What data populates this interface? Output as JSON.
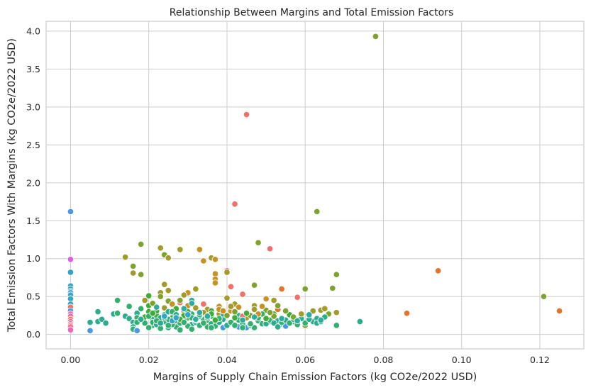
{
  "chart_data": {
    "type": "scatter",
    "title": "Relationship Between Margins and Total Emission Factors",
    "xlabel": "Margins of Supply Chain Emission Factors (kg CO2e/2022 USD)",
    "ylabel": "Total Emission Factors With Margins (kg CO2e/2022 USD)",
    "xlim": [
      -0.00625,
      0.13125
    ],
    "ylim": [
      -0.19,
      4.13
    ],
    "xticks": [
      "0.00",
      "0.02",
      "0.04",
      "0.06",
      "0.08",
      "0.10",
      "0.12"
    ],
    "yticks": [
      "0.0",
      "0.5",
      "1.0",
      "1.5",
      "2.0",
      "2.5",
      "3.0",
      "3.5",
      "4.0"
    ],
    "grid": true,
    "legend": "none",
    "palette": [
      "#f0706a",
      "#e0762e",
      "#c69223",
      "#a29b2c",
      "#7ea22e",
      "#3fac38",
      "#33b070",
      "#2cac8e",
      "#2fac9f",
      "#34a5c9",
      "#4b95e8",
      "#a07ff0",
      "#e05ce6",
      "#f264b6",
      "#f56d90"
    ],
    "points": [
      [
        0.0,
        1.62,
        10
      ],
      [
        0.0,
        0.99,
        12
      ],
      [
        0.0,
        0.82,
        9
      ],
      [
        0.0,
        0.64,
        9
      ],
      [
        0.0,
        0.6,
        9
      ],
      [
        0.0,
        0.57,
        9
      ],
      [
        0.0,
        0.55,
        10
      ],
      [
        0.0,
        0.52,
        9
      ],
      [
        0.0,
        0.47,
        9
      ],
      [
        0.0,
        0.4,
        9
      ],
      [
        0.0,
        0.36,
        0
      ],
      [
        0.0,
        0.31,
        10
      ],
      [
        0.0,
        0.27,
        13
      ],
      [
        0.0,
        0.24,
        14
      ],
      [
        0.0,
        0.2,
        0
      ],
      [
        0.0,
        0.17,
        14
      ],
      [
        0.0,
        0.14,
        13
      ],
      [
        0.0,
        0.12,
        0
      ],
      [
        0.0,
        0.1,
        14
      ],
      [
        0.0,
        0.06,
        13
      ],
      [
        0.005,
        0.05,
        10
      ],
      [
        0.005,
        0.16,
        7
      ],
      [
        0.007,
        0.3,
        7
      ],
      [
        0.007,
        0.17,
        7
      ],
      [
        0.008,
        0.2,
        7
      ],
      [
        0.009,
        0.15,
        7
      ],
      [
        0.011,
        0.27,
        7
      ],
      [
        0.012,
        0.28,
        6
      ],
      [
        0.012,
        0.45,
        6
      ],
      [
        0.014,
        0.24,
        7
      ],
      [
        0.015,
        0.21,
        7
      ],
      [
        0.015,
        0.37,
        6
      ],
      [
        0.016,
        0.16,
        7
      ],
      [
        0.016,
        0.1,
        7
      ],
      [
        0.016,
        0.07,
        6
      ],
      [
        0.017,
        0.05,
        10
      ],
      [
        0.017,
        0.28,
        7
      ],
      [
        0.017,
        0.22,
        6
      ],
      [
        0.014,
        1.02,
        3
      ],
      [
        0.016,
        0.9,
        4
      ],
      [
        0.016,
        0.81,
        3
      ],
      [
        0.018,
        1.19,
        4
      ],
      [
        0.018,
        0.79,
        4
      ],
      [
        0.019,
        0.45,
        3
      ],
      [
        0.02,
        0.51,
        5
      ],
      [
        0.02,
        0.3,
        5
      ],
      [
        0.021,
        0.2,
        7
      ],
      [
        0.021,
        0.12,
        6
      ],
      [
        0.022,
        0.25,
        5
      ],
      [
        0.023,
        1.14,
        3
      ],
      [
        0.024,
        1.05,
        4
      ],
      [
        0.025,
        1.01,
        3
      ],
      [
        0.025,
        0.58,
        3
      ],
      [
        0.024,
        0.66,
        3
      ],
      [
        0.023,
        0.55,
        3
      ],
      [
        0.023,
        0.5,
        4
      ],
      [
        0.024,
        0.35,
        3
      ],
      [
        0.025,
        0.44,
        4
      ],
      [
        0.026,
        0.39,
        3
      ],
      [
        0.026,
        0.28,
        7
      ],
      [
        0.026,
        0.22,
        5
      ],
      [
        0.027,
        0.18,
        7
      ],
      [
        0.027,
        0.1,
        6
      ],
      [
        0.028,
        0.06,
        6
      ],
      [
        0.028,
        1.12,
        3
      ],
      [
        0.028,
        0.42,
        0
      ],
      [
        0.029,
        0.31,
        3
      ],
      [
        0.03,
        0.38,
        2
      ],
      [
        0.03,
        0.55,
        2
      ],
      [
        0.03,
        0.22,
        5
      ],
      [
        0.031,
        0.13,
        7
      ],
      [
        0.031,
        0.45,
        8
      ],
      [
        0.031,
        0.41,
        8
      ],
      [
        0.032,
        0.6,
        3
      ],
      [
        0.033,
        1.12,
        2
      ],
      [
        0.034,
        0.97,
        2
      ],
      [
        0.035,
        0.33,
        3
      ],
      [
        0.035,
        0.19,
        5
      ],
      [
        0.036,
        1.01,
        3
      ],
      [
        0.037,
        0.99,
        2
      ],
      [
        0.037,
        0.8,
        2
      ],
      [
        0.037,
        0.73,
        2
      ],
      [
        0.037,
        0.68,
        2
      ],
      [
        0.038,
        0.37,
        2
      ],
      [
        0.038,
        0.27,
        3
      ],
      [
        0.039,
        0.2,
        7
      ],
      [
        0.039,
        0.09,
        10
      ],
      [
        0.04,
        0.84,
        0
      ],
      [
        0.04,
        0.82,
        3
      ],
      [
        0.04,
        0.48,
        3
      ],
      [
        0.041,
        0.63,
        0
      ],
      [
        0.041,
        0.31,
        2
      ],
      [
        0.042,
        1.72,
        0
      ],
      [
        0.042,
        0.4,
        3
      ],
      [
        0.043,
        0.25,
        7
      ],
      [
        0.043,
        0.1,
        10
      ],
      [
        0.044,
        0.53,
        0
      ],
      [
        0.044,
        0.14,
        6
      ],
      [
        0.045,
        2.9,
        0
      ],
      [
        0.045,
        0.22,
        3
      ],
      [
        0.045,
        0.09,
        10
      ],
      [
        0.046,
        0.25,
        4
      ],
      [
        0.047,
        0.65,
        4
      ],
      [
        0.047,
        0.38,
        3
      ],
      [
        0.048,
        1.21,
        4
      ],
      [
        0.048,
        0.18,
        6
      ],
      [
        0.049,
        0.14,
        6
      ],
      [
        0.05,
        0.47,
        2
      ],
      [
        0.05,
        0.32,
        4
      ],
      [
        0.051,
        1.13,
        0
      ],
      [
        0.051,
        0.17,
        7
      ],
      [
        0.052,
        0.45,
        3
      ],
      [
        0.052,
        0.27,
        5
      ],
      [
        0.053,
        0.33,
        1
      ],
      [
        0.053,
        0.18,
        7
      ],
      [
        0.054,
        0.6,
        1
      ],
      [
        0.054,
        0.14,
        6
      ],
      [
        0.055,
        0.11,
        10
      ],
      [
        0.056,
        0.26,
        5
      ],
      [
        0.057,
        0.17,
        7
      ],
      [
        0.058,
        0.13,
        6
      ],
      [
        0.058,
        0.49,
        0
      ],
      [
        0.059,
        0.21,
        7
      ],
      [
        0.06,
        0.6,
        4
      ],
      [
        0.06,
        0.12,
        4
      ],
      [
        0.061,
        0.27,
        3
      ],
      [
        0.062,
        0.31,
        3
      ],
      [
        0.062,
        0.17,
        7
      ],
      [
        0.063,
        1.62,
        4
      ],
      [
        0.063,
        0.21,
        7
      ],
      [
        0.064,
        0.32,
        3
      ],
      [
        0.065,
        0.34,
        3
      ],
      [
        0.066,
        0.27,
        4
      ],
      [
        0.067,
        0.61,
        4
      ],
      [
        0.068,
        0.79,
        4
      ],
      [
        0.068,
        0.29,
        3
      ],
      [
        0.068,
        0.12,
        6
      ],
      [
        0.074,
        0.17,
        7
      ],
      [
        0.078,
        3.93,
        4
      ],
      [
        0.086,
        0.28,
        1
      ],
      [
        0.094,
        0.84,
        1
      ],
      [
        0.121,
        0.5,
        4
      ],
      [
        0.125,
        0.31,
        1
      ],
      [
        0.019,
        0.15,
        6
      ],
      [
        0.02,
        0.09,
        6
      ],
      [
        0.021,
        0.16,
        6
      ],
      [
        0.022,
        0.13,
        7
      ],
      [
        0.023,
        0.08,
        6
      ],
      [
        0.024,
        0.17,
        6
      ],
      [
        0.024,
        0.26,
        6
      ],
      [
        0.025,
        0.09,
        7
      ],
      [
        0.025,
        0.2,
        6
      ],
      [
        0.026,
        0.13,
        6
      ],
      [
        0.027,
        0.24,
        6
      ],
      [
        0.028,
        0.15,
        6
      ],
      [
        0.029,
        0.19,
        7
      ],
      [
        0.03,
        0.11,
        6
      ],
      [
        0.031,
        0.07,
        6
      ],
      [
        0.032,
        0.16,
        7
      ],
      [
        0.033,
        0.12,
        6
      ],
      [
        0.034,
        0.2,
        6
      ],
      [
        0.035,
        0.1,
        6
      ],
      [
        0.036,
        0.14,
        7
      ],
      [
        0.036,
        0.24,
        6
      ],
      [
        0.037,
        0.11,
        6
      ],
      [
        0.038,
        0.16,
        7
      ],
      [
        0.039,
        0.27,
        7
      ],
      [
        0.04,
        0.12,
        7
      ],
      [
        0.041,
        0.16,
        6
      ],
      [
        0.042,
        0.12,
        6
      ],
      [
        0.043,
        0.19,
        6
      ],
      [
        0.044,
        0.09,
        6
      ],
      [
        0.046,
        0.12,
        6
      ],
      [
        0.047,
        0.09,
        6
      ],
      [
        0.048,
        0.22,
        6
      ],
      [
        0.049,
        0.27,
        6
      ],
      [
        0.05,
        0.14,
        7
      ],
      [
        0.051,
        0.19,
        6
      ],
      [
        0.052,
        0.15,
        7
      ],
      [
        0.053,
        0.1,
        7
      ],
      [
        0.054,
        0.16,
        6
      ],
      [
        0.055,
        0.19,
        7
      ],
      [
        0.056,
        0.15,
        6
      ],
      [
        0.057,
        0.2,
        6
      ],
      [
        0.06,
        0.15,
        6
      ],
      [
        0.061,
        0.2,
        7
      ],
      [
        0.063,
        0.15,
        7
      ],
      [
        0.064,
        0.17,
        6
      ],
      [
        0.065,
        0.23,
        7
      ],
      [
        0.018,
        0.34,
        6
      ],
      [
        0.019,
        0.23,
        5
      ],
      [
        0.02,
        0.38,
        5
      ],
      [
        0.022,
        0.31,
        5
      ],
      [
        0.023,
        0.22,
        7
      ],
      [
        0.025,
        0.3,
        7
      ],
      [
        0.027,
        0.34,
        5
      ],
      [
        0.029,
        0.25,
        5
      ],
      [
        0.031,
        0.27,
        6
      ],
      [
        0.033,
        0.24,
        7
      ],
      [
        0.034,
        0.29,
        3
      ],
      [
        0.036,
        0.31,
        5
      ],
      [
        0.038,
        0.21,
        6
      ],
      [
        0.04,
        0.25,
        4
      ],
      [
        0.042,
        0.22,
        5
      ],
      [
        0.044,
        0.24,
        0
      ],
      [
        0.046,
        0.14,
        6
      ],
      [
        0.048,
        0.27,
        2
      ],
      [
        0.05,
        0.21,
        5
      ],
      [
        0.052,
        0.24,
        4
      ],
      [
        0.021,
        0.41,
        4
      ],
      [
        0.026,
        0.4,
        2
      ],
      [
        0.028,
        0.45,
        4
      ],
      [
        0.029,
        0.52,
        3
      ],
      [
        0.032,
        0.35,
        3
      ],
      [
        0.034,
        0.4,
        0
      ],
      [
        0.036,
        0.27,
        5
      ],
      [
        0.038,
        0.33,
        2
      ],
      [
        0.039,
        0.31,
        2
      ],
      [
        0.041,
        0.37,
        3
      ],
      [
        0.042,
        0.3,
        4
      ],
      [
        0.043,
        0.36,
        2
      ],
      [
        0.045,
        0.28,
        5
      ],
      [
        0.047,
        0.33,
        3
      ],
      [
        0.049,
        0.37,
        2
      ],
      [
        0.051,
        0.29,
        4
      ],
      [
        0.053,
        0.38,
        4
      ],
      [
        0.055,
        0.31,
        4
      ],
      [
        0.057,
        0.23,
        4
      ],
      [
        0.059,
        0.27,
        3
      ],
      [
        0.017,
        0.16,
        6
      ],
      [
        0.018,
        0.2,
        7
      ],
      [
        0.02,
        0.24,
        6
      ],
      [
        0.021,
        0.28,
        5
      ],
      [
        0.022,
        0.18,
        6
      ],
      [
        0.023,
        0.15,
        7
      ],
      [
        0.024,
        0.22,
        6
      ],
      [
        0.025,
        0.12,
        6
      ],
      [
        0.026,
        0.3,
        6
      ],
      [
        0.027,
        0.26,
        7
      ],
      [
        0.028,
        0.2,
        5
      ],
      [
        0.029,
        0.16,
        6
      ],
      [
        0.03,
        0.3,
        5
      ],
      [
        0.031,
        0.22,
        6
      ],
      [
        0.032,
        0.19,
        7
      ],
      [
        0.033,
        0.26,
        6
      ],
      [
        0.034,
        0.15,
        6
      ],
      [
        0.035,
        0.22,
        6
      ],
      [
        0.036,
        0.09,
        6
      ],
      [
        0.037,
        0.19,
        5
      ],
      [
        0.026,
        0.18,
        9
      ],
      [
        0.027,
        0.22,
        9
      ],
      [
        0.03,
        0.26,
        9
      ],
      [
        0.032,
        0.2,
        8
      ],
      [
        0.024,
        0.24,
        9
      ],
      [
        0.022,
        0.36,
        8
      ],
      [
        0.033,
        0.29,
        8
      ],
      [
        0.029,
        0.34,
        8
      ],
      [
        0.035,
        0.24,
        8
      ],
      [
        0.044,
        0.19,
        8
      ],
      [
        0.047,
        0.23,
        8
      ],
      [
        0.054,
        0.21,
        8
      ],
      [
        0.058,
        0.18,
        8
      ],
      [
        0.061,
        0.26,
        8
      ],
      [
        0.064,
        0.19,
        8
      ]
    ]
  }
}
